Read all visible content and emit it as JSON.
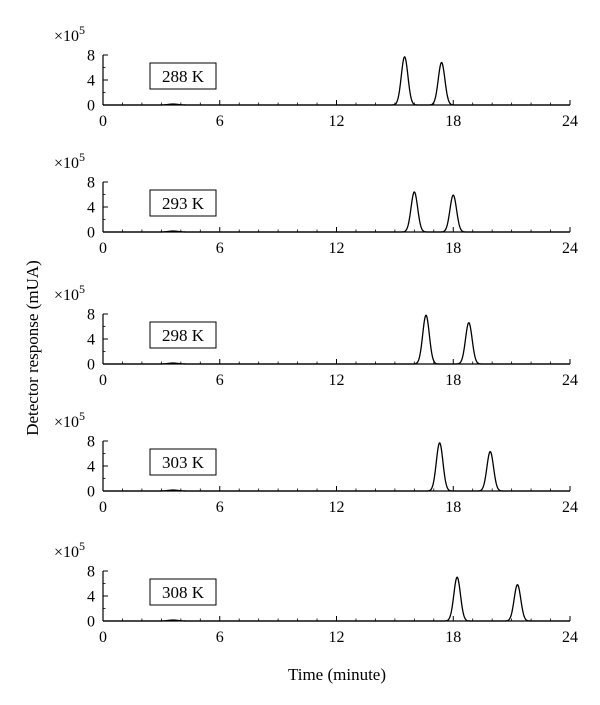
{
  "chart_data": {
    "type": "line",
    "ylabel": "Detector response (mUA)",
    "xlabel": "Time (minute)",
    "y_multiplier": "×10",
    "y_multiplier_exp": "5",
    "xlim": [
      0,
      24
    ],
    "ylim": [
      0,
      8
    ],
    "x_ticks": [
      "0",
      "6",
      "12",
      "18",
      "24"
    ],
    "y_ticks": [
      "0",
      "4",
      "8"
    ],
    "grid": false,
    "panels": [
      {
        "label": "288 K",
        "peaks": [
          {
            "time": 15.5,
            "height": 7.7
          },
          {
            "time": 17.4,
            "height": 6.8
          }
        ],
        "minor_bumps": [
          {
            "time": 3.6,
            "height": 0.15
          }
        ]
      },
      {
        "label": "293 K",
        "peaks": [
          {
            "time": 16.0,
            "height": 6.4
          },
          {
            "time": 18.0,
            "height": 5.9
          }
        ],
        "minor_bumps": [
          {
            "time": 3.6,
            "height": 0.15
          }
        ]
      },
      {
        "label": "298 K",
        "peaks": [
          {
            "time": 16.6,
            "height": 7.8
          },
          {
            "time": 18.8,
            "height": 6.6
          }
        ],
        "minor_bumps": [
          {
            "time": 3.6,
            "height": 0.15
          }
        ]
      },
      {
        "label": "303 K",
        "peaks": [
          {
            "time": 17.3,
            "height": 7.7
          },
          {
            "time": 19.9,
            "height": 6.3
          }
        ],
        "minor_bumps": [
          {
            "time": 3.6,
            "height": 0.15
          }
        ]
      },
      {
        "label": "308 K",
        "peaks": [
          {
            "time": 18.2,
            "height": 7.0
          },
          {
            "time": 21.3,
            "height": 5.8
          }
        ],
        "minor_bumps": [
          {
            "time": 3.6,
            "height": 0.15
          }
        ]
      }
    ]
  }
}
